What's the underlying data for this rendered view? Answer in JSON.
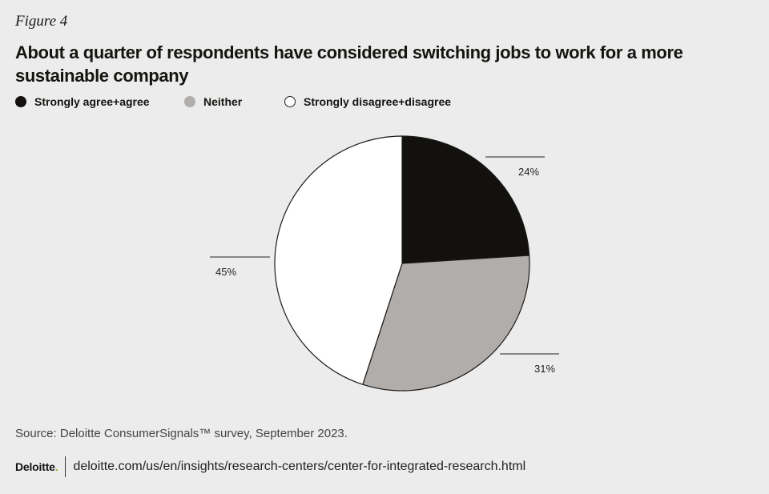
{
  "figure_label": "Figure 4",
  "title": "About a quarter of respondents have considered switching jobs to work for a more sustainable company",
  "legend": [
    {
      "label": "Strongly agree+agree",
      "color": "#12110e",
      "border": "#12110e"
    },
    {
      "label": "Neither",
      "color": "#b0adaa",
      "border": "#b0adaa"
    },
    {
      "label": "Strongly disagree+disagree",
      "color": "#ffffff",
      "border": "#222222"
    }
  ],
  "chart_data": {
    "type": "pie",
    "labels": [
      "Strongly agree+agree",
      "Neither",
      "Strongly disagree+disagree"
    ],
    "values": [
      24,
      31,
      45
    ],
    "value_labels": [
      "24%",
      "31%",
      "45%"
    ],
    "colors": [
      "#12110e",
      "#b0adaa",
      "#ffffff"
    ],
    "start": "12 o'clock",
    "direction": "clockwise",
    "legend_position": "top-left"
  },
  "source": "Source: Deloitte ConsumerSignals™ survey, September 2023.",
  "footer": {
    "brand": "Deloitte",
    "brand_dot": ".",
    "url": "deloitte.com/us/en/insights/research-centers/center-for-integrated-research.html"
  }
}
